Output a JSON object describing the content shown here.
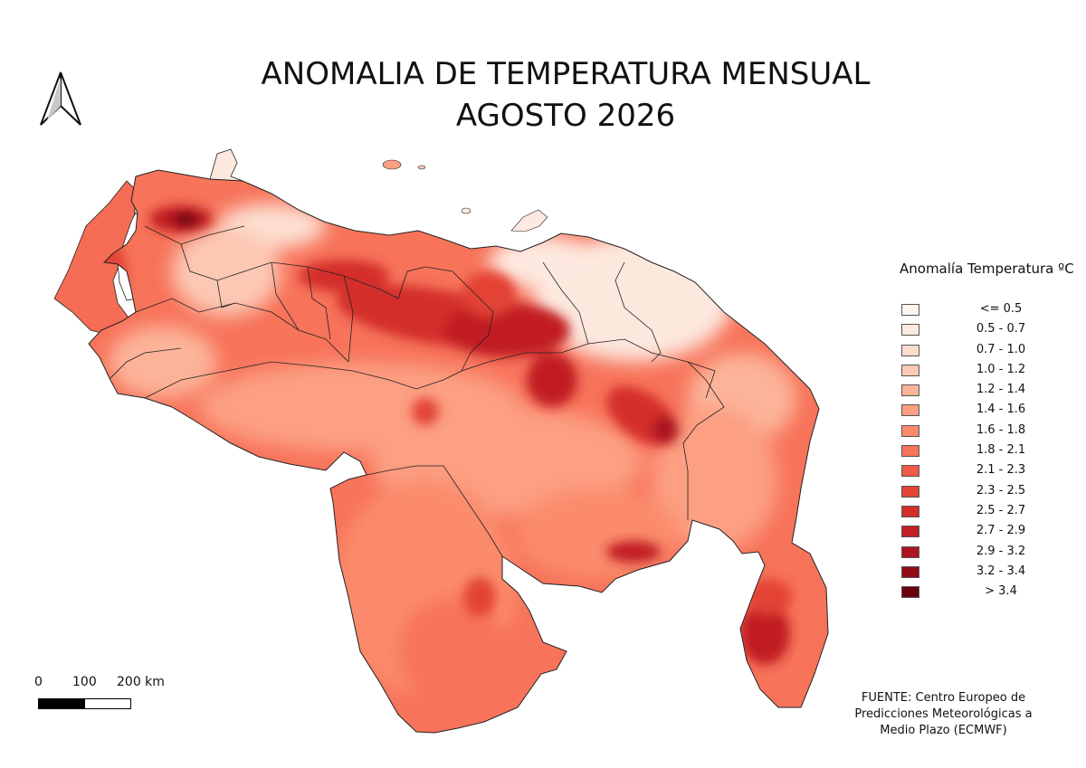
{
  "title": {
    "line1": "ANOMALIA DE TEMPERATURA MENSUAL",
    "line2": "AGOSTO 2026"
  },
  "north_arrow": {
    "icon": "north-arrow-icon"
  },
  "legend": {
    "title": "Anomalía Temperatura ºC",
    "classes": [
      {
        "label": "<= 0.5",
        "color": "#fff5f0"
      },
      {
        "label": "0.5 - 0.7",
        "color": "#fee9e0"
      },
      {
        "label": "0.7 - 1.0",
        "color": "#fddccd"
      },
      {
        "label": "1.0 - 1.2",
        "color": "#fcc8b4"
      },
      {
        "label": "1.2 - 1.4",
        "color": "#fcb499"
      },
      {
        "label": "1.4 - 1.6",
        "color": "#fc9f82"
      },
      {
        "label": "1.6 - 1.8",
        "color": "#fb8b6c"
      },
      {
        "label": "1.8 - 2.1",
        "color": "#f7735a"
      },
      {
        "label": "2.1 - 2.3",
        "color": "#f05a46"
      },
      {
        "label": "2.3 - 2.5",
        "color": "#e34334"
      },
      {
        "label": "2.5 - 2.7",
        "color": "#d32e2a"
      },
      {
        "label": "2.7 - 2.9",
        "color": "#c11f24"
      },
      {
        "label": "2.9 - 3.2",
        "color": "#ac1520"
      },
      {
        "label": "3.2 - 3.4",
        "color": "#900b18"
      },
      {
        "label": "> 3.4",
        "color": "#6a0010"
      }
    ]
  },
  "scalebar": {
    "labels": [
      "0",
      "100",
      "200 km"
    ]
  },
  "source": {
    "line1": "FUENTE: Centro Europeo de",
    "line2": "Predicciones Meteorológicas a",
    "line3": "Medio Plazo (ECMWF)"
  }
}
